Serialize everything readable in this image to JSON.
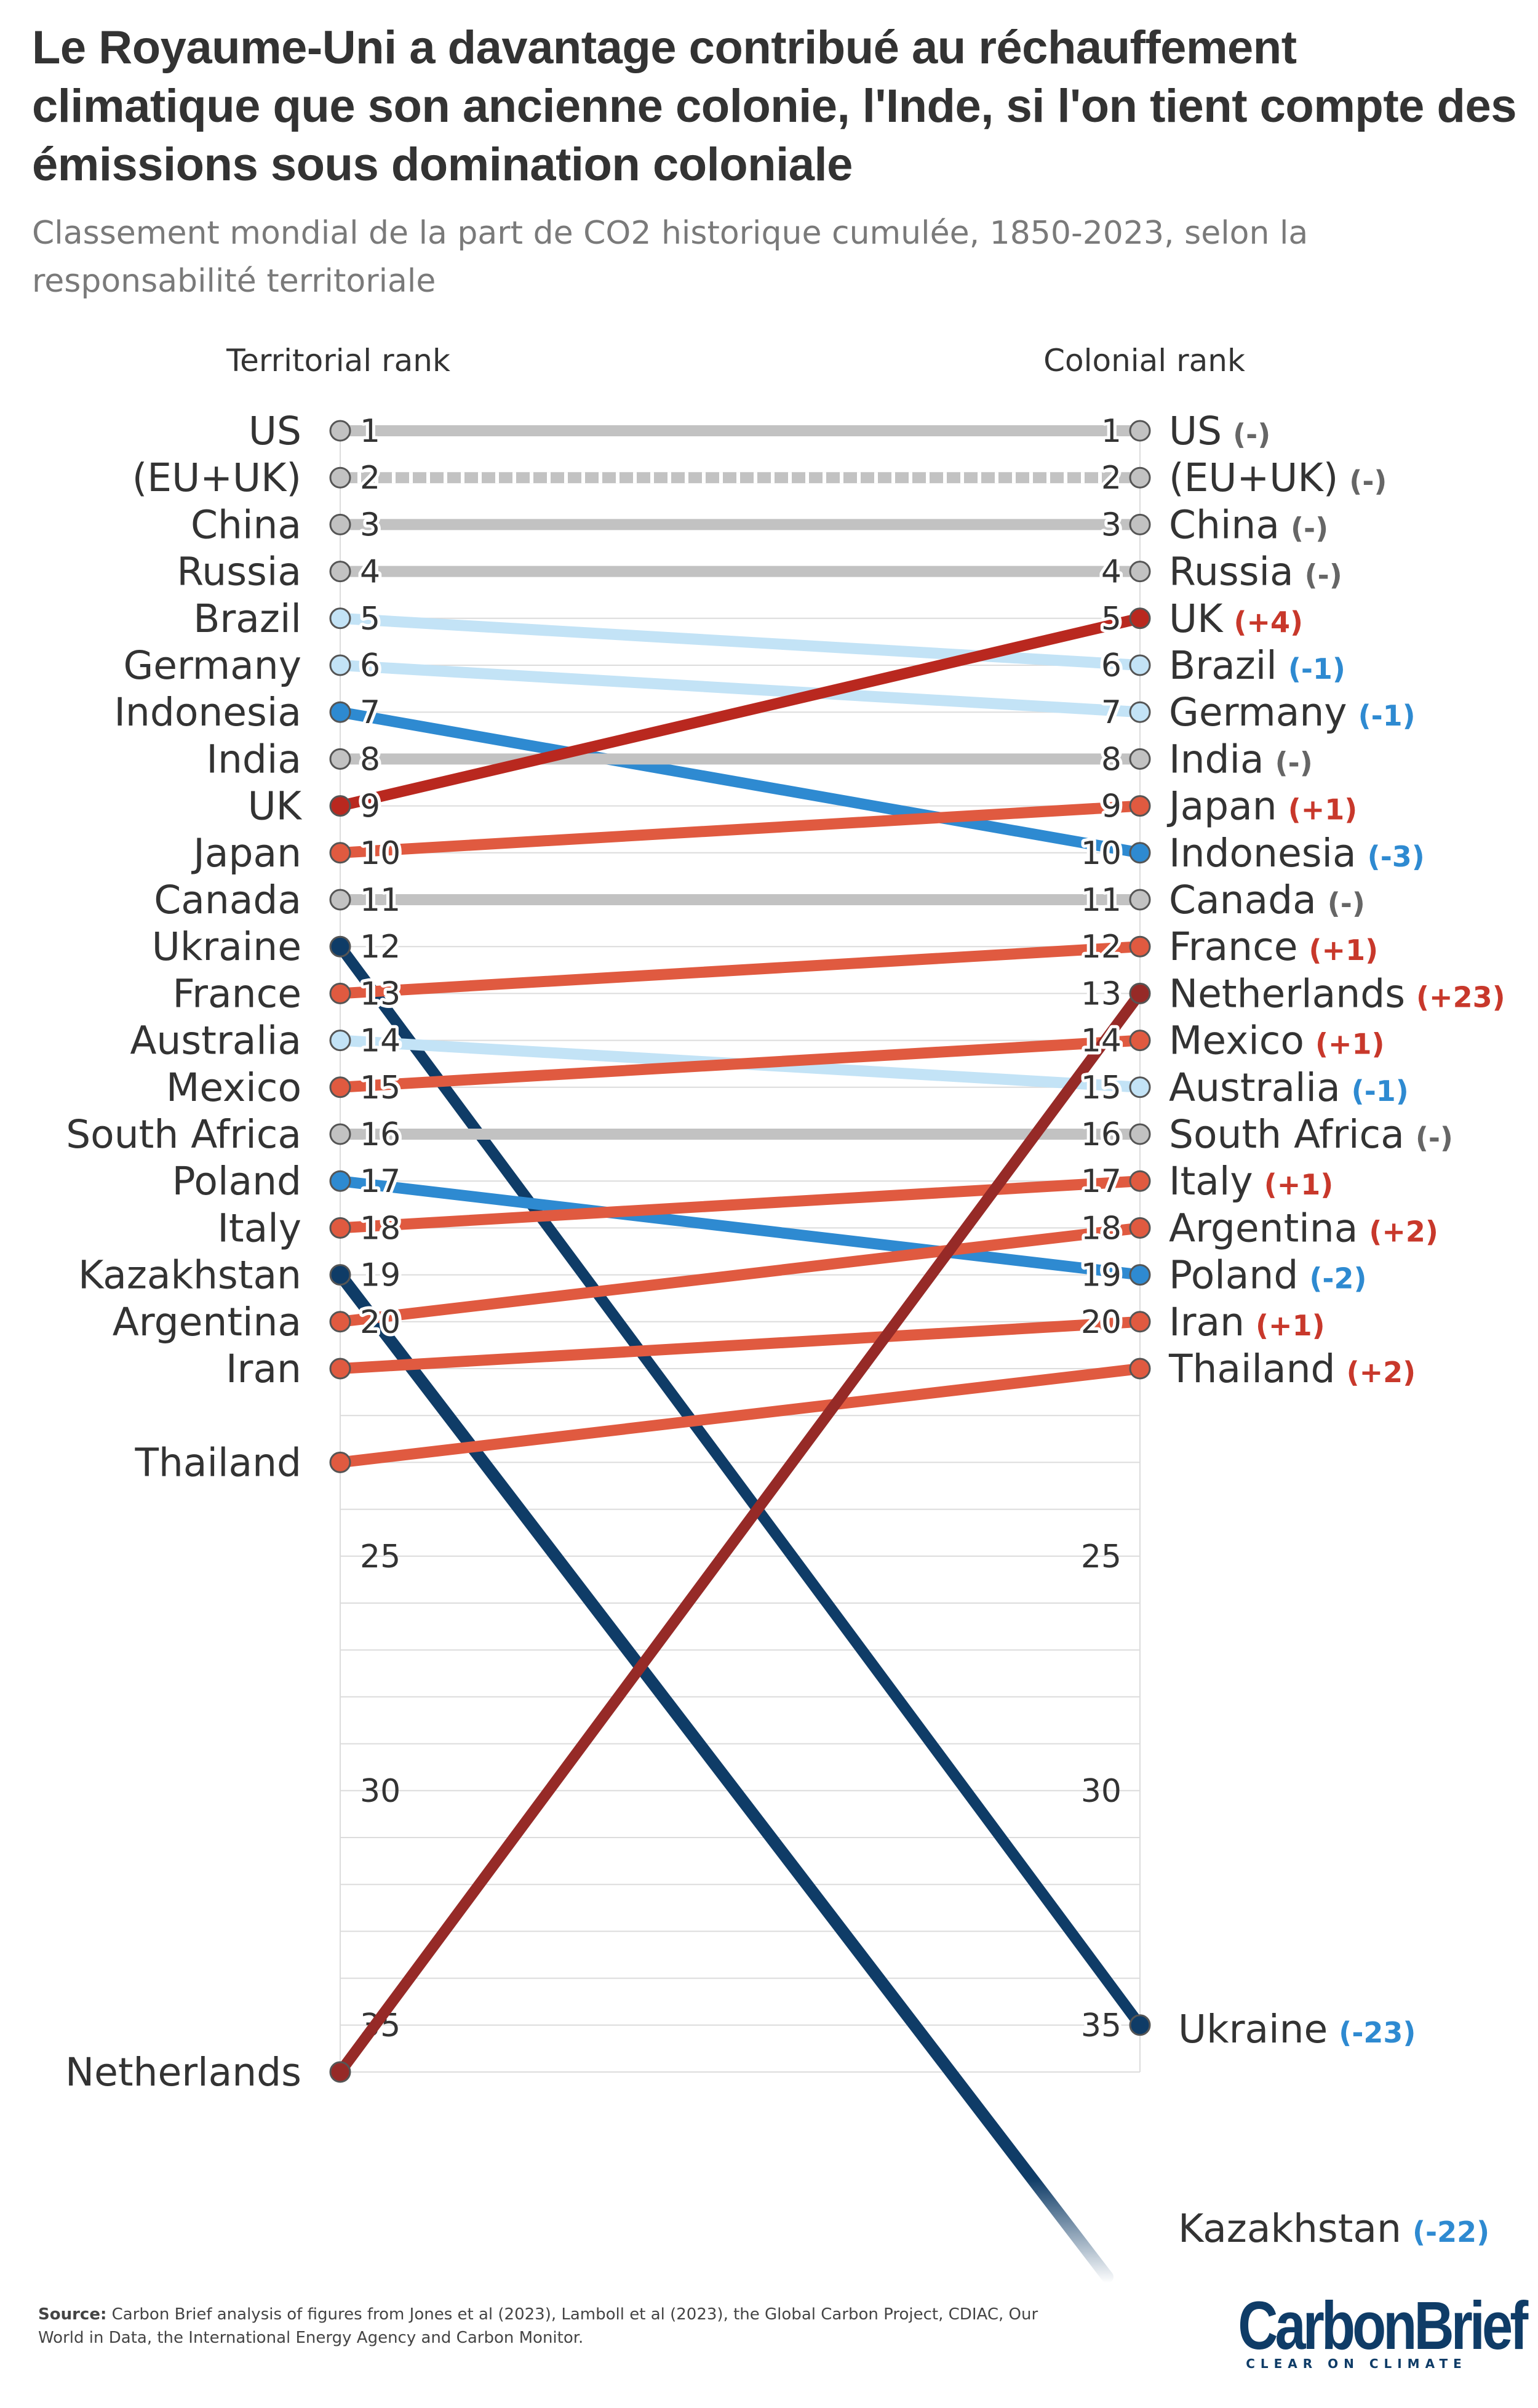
{
  "title": "Le Royaume-Uni a davantage contribué au réchauffement climatique que son ancienne colonie, l'Inde, si l'on tient compte des émissions sous domination coloniale",
  "subtitle": "Classement mondial de la part de CO2 historique cumulée, 1850-2023, selon la responsabilité territoriale",
  "source_label": "Source:",
  "source_text": "Carbon Brief analysis of figures from Jones et al (2023), Lamboll et al (2023), the Global Carbon Project, CDIAC, Our World in Data, the International Energy Agency and Carbon Monitor.",
  "logo": {
    "word": "CarbonBrief",
    "tagline": "CLEAR ON CLIMATE"
  },
  "colors": {
    "unchanged": "#c2c2c2",
    "down_1": "#c3e3f6",
    "down_2_3": "#2e8ad1",
    "down_large": "#0f3c67",
    "up_1_2": "#e05a40",
    "up_4": "#b9281f",
    "up_large": "#962a27",
    "change_up_text": "#c8382b",
    "change_down_text": "#2e8ad1",
    "change_same_text": "#666666",
    "grid": "#dcdcdc"
  },
  "chart_data": {
    "type": "slope",
    "left_header": "Territorial rank",
    "right_header": "Colonial rank",
    "ylim": [
      1,
      36
    ],
    "axis_ticks": [
      25,
      30,
      35
    ],
    "series": [
      {
        "country": "US",
        "territorial": 1,
        "colonial": 1,
        "change": "(-)",
        "group": "unchanged"
      },
      {
        "country": "(EU+UK)",
        "territorial": 2,
        "colonial": 2,
        "change": "(-)",
        "group": "unchanged",
        "dashed": true
      },
      {
        "country": "China",
        "territorial": 3,
        "colonial": 3,
        "change": "(-)",
        "group": "unchanged"
      },
      {
        "country": "Russia",
        "territorial": 4,
        "colonial": 4,
        "change": "(-)",
        "group": "unchanged"
      },
      {
        "country": "Brazil",
        "territorial": 5,
        "colonial": 6,
        "change": "(-1)",
        "group": "down_1"
      },
      {
        "country": "Germany",
        "territorial": 6,
        "colonial": 7,
        "change": "(-1)",
        "group": "down_1"
      },
      {
        "country": "Indonesia",
        "territorial": 7,
        "colonial": 10,
        "change": "(-3)",
        "group": "down_2_3"
      },
      {
        "country": "India",
        "territorial": 8,
        "colonial": 8,
        "change": "(-)",
        "group": "unchanged"
      },
      {
        "country": "UK",
        "territorial": 9,
        "colonial": 5,
        "change": "(+4)",
        "group": "up_4"
      },
      {
        "country": "Japan",
        "territorial": 10,
        "colonial": 9,
        "change": "(+1)",
        "group": "up_1_2"
      },
      {
        "country": "Canada",
        "territorial": 11,
        "colonial": 11,
        "change": "(-)",
        "group": "unchanged"
      },
      {
        "country": "Ukraine",
        "territorial": 12,
        "colonial": 35,
        "change": "(-23)",
        "group": "down_large"
      },
      {
        "country": "France",
        "territorial": 13,
        "colonial": 12,
        "change": "(+1)",
        "group": "up_1_2"
      },
      {
        "country": "Australia",
        "territorial": 14,
        "colonial": 15,
        "change": "(-1)",
        "group": "down_1"
      },
      {
        "country": "Mexico",
        "territorial": 15,
        "colonial": 14,
        "change": "(+1)",
        "group": "up_1_2"
      },
      {
        "country": "South Africa",
        "territorial": 16,
        "colonial": 16,
        "change": "(-)",
        "group": "unchanged"
      },
      {
        "country": "Poland",
        "territorial": 17,
        "colonial": 19,
        "change": "(-2)",
        "group": "down_2_3"
      },
      {
        "country": "Italy",
        "territorial": 18,
        "colonial": 17,
        "change": "(+1)",
        "group": "up_1_2"
      },
      {
        "country": "Kazakhstan",
        "territorial": 19,
        "colonial": 41,
        "change": "(-22)",
        "group": "down_large",
        "fades_out": true
      },
      {
        "country": "Argentina",
        "territorial": 20,
        "colonial": 18,
        "change": "(+2)",
        "group": "up_1_2"
      },
      {
        "country": "Iran",
        "territorial": 21,
        "colonial": 20,
        "change": "(+1)",
        "group": "up_1_2"
      },
      {
        "country": "Thailand",
        "territorial": 23,
        "colonial": 21,
        "change": "(+2)",
        "group": "up_1_2"
      },
      {
        "country": "Netherlands",
        "territorial": 36,
        "colonial": 13,
        "change": "(+23)",
        "group": "up_large"
      }
    ]
  }
}
